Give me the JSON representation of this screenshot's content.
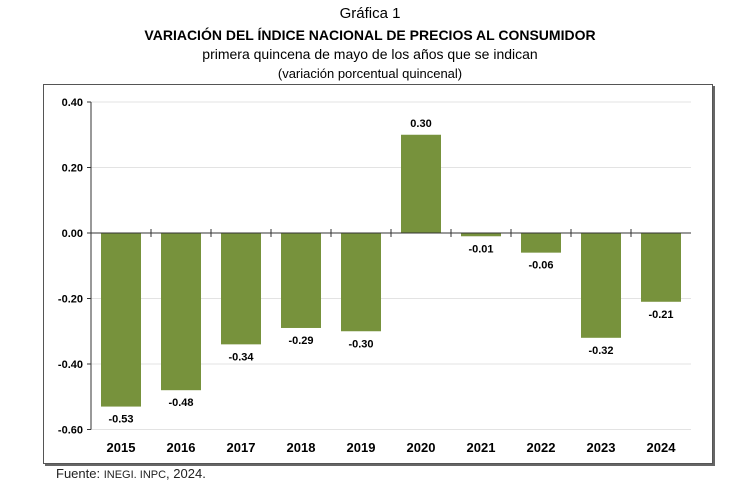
{
  "header": {
    "label": "Gráfica 1",
    "title": "VARIACIÓN DEL ÍNDICE NACIONAL DE PRECIOS AL CONSUMIDOR",
    "subtitle": "primera quincena de mayo de los años que se indican",
    "unit": "(variación porcentual quincenal)"
  },
  "source": {
    "prefix": "Fuente: ",
    "org": "INEGI. INPC",
    "suffix": ", 2024."
  },
  "chart_data": {
    "type": "bar",
    "categories": [
      "2015",
      "2016",
      "2017",
      "2018",
      "2019",
      "2020",
      "2021",
      "2022",
      "2023",
      "2024"
    ],
    "values": [
      -0.53,
      -0.48,
      -0.34,
      -0.29,
      -0.3,
      0.3,
      -0.01,
      -0.06,
      -0.32,
      -0.21
    ],
    "data_labels": [
      "-0.53",
      "-0.48",
      "-0.34",
      "-0.29",
      "-0.30",
      "0.30",
      "-0.01",
      "-0.06",
      "-0.32",
      "-0.21"
    ],
    "ylim": [
      -0.6,
      0.4
    ],
    "yticks": [
      "0.40",
      "0.20",
      "0.00",
      "-0.20",
      "-0.40",
      "-0.60"
    ],
    "grid": true,
    "bar_color": "#77923c"
  }
}
